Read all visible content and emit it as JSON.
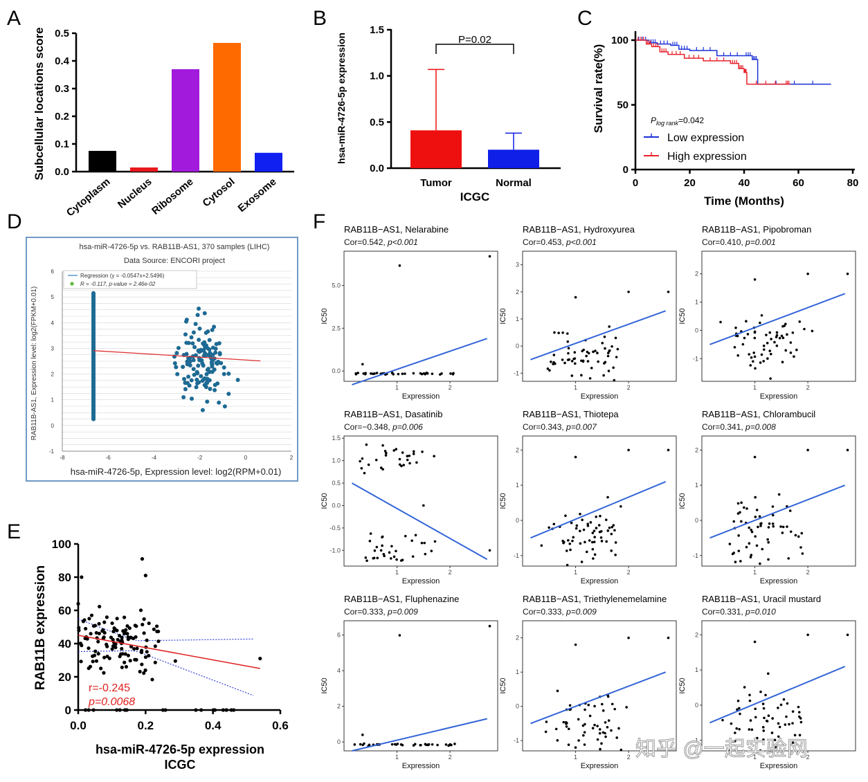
{
  "panel_labels": {
    "A": "A",
    "B": "B",
    "C": "C",
    "D": "D",
    "E": "E",
    "F": "F"
  },
  "watermark": "知乎 @一起实验网",
  "chart_data": [
    {
      "id": "A",
      "type": "bar",
      "ylabel": "Subcellular locations score",
      "categories": [
        "Cytoplasm",
        "Nucleus",
        "Ribosome",
        "Cytosol",
        "Exosome"
      ],
      "values": [
        0.075,
        0.015,
        0.37,
        0.465,
        0.068
      ],
      "colors": [
        "#000000",
        "#e8191d",
        "#a21bdc",
        "#ff6a00",
        "#1020f0"
      ],
      "ylim": [
        0,
        0.5
      ],
      "yticks": [
        "0.0",
        "0.1",
        "0.2",
        "0.3",
        "0.4",
        "0.5"
      ]
    },
    {
      "id": "B",
      "type": "bar",
      "ylabel": "hsa-miR-4726-5p expression",
      "xlabel": "ICGC",
      "categories": [
        "Tumor",
        "Normal"
      ],
      "values": [
        0.41,
        0.2
      ],
      "errors": [
        0.66,
        0.18
      ],
      "colors": [
        "#ee0f0f",
        "#0f1fe8"
      ],
      "ylim": [
        0,
        1.5
      ],
      "yticks": [
        "0.0",
        "0.5",
        "1.0",
        "1.5"
      ],
      "annotation": "P=0.02"
    },
    {
      "id": "C",
      "type": "line",
      "ylabel": "Survival rate(%)",
      "xlabel": "Time (Months)",
      "xlim": [
        0,
        80
      ],
      "ylim": [
        0,
        100
      ],
      "xticks": [
        "0",
        "20",
        "40",
        "60",
        "80"
      ],
      "yticks": [
        "0",
        "50",
        "100"
      ],
      "pvalue_prefix": "P",
      "pvalue_sub": "log rank",
      "pvalue_value": "=0.042",
      "series": [
        {
          "name": "Low expression",
          "color": "#1830d8",
          "x": [
            0,
            5,
            8,
            13,
            16,
            20,
            30,
            40,
            43,
            45,
            72
          ],
          "y": [
            100,
            98,
            97,
            96,
            93,
            92,
            88,
            88,
            85,
            66,
            66
          ]
        },
        {
          "name": "High expression",
          "color": "#e8202a",
          "x": [
            0,
            4,
            6,
            9,
            12,
            18,
            25,
            35,
            38,
            40,
            41,
            55,
            57
          ],
          "y": [
            100,
            97,
            95,
            91,
            89,
            86,
            84,
            82,
            78,
            75,
            66,
            66,
            66
          ]
        }
      ]
    },
    {
      "id": "D",
      "type": "scatter",
      "title": "hsa-miR-4726-5p vs. RAB11B-AS1, 370 samples (LIHC)",
      "subtitle": "Data Source: ENCORI project",
      "legend_regression": "Regression (y = -0.0547x+2.5496)",
      "legend_r": "R = -0.117, p-value = 2.46e-02",
      "ylabel": "RAB11B-AS1, Expression level: log2(FPKM+0.01)",
      "xlabel": "hsa-miR-4726-5p, Expression level: log2(RPM+0.01)",
      "xlim": [
        -8,
        2
      ],
      "ylim": [
        -1,
        6
      ],
      "xticks": [
        "-8",
        "-6",
        "-4",
        "-2",
        "0",
        "2"
      ],
      "yticks": [
        "-1",
        "0",
        "1",
        "2",
        "3",
        "4",
        "5",
        "6"
      ],
      "regression": {
        "slope": -0.0547,
        "intercept": 2.5496
      }
    },
    {
      "id": "E",
      "type": "scatter",
      "ylabel": "RAB11B expression",
      "xlabel_line1": "hsa-miR-4726-5p expression",
      "xlabel_line2": "ICGC",
      "xlim": [
        0,
        0.6
      ],
      "ylim": [
        0,
        100
      ],
      "xticks": [
        "0.0",
        "0.2",
        "0.4",
        "0.6"
      ],
      "yticks": [
        "0",
        "20",
        "40",
        "60",
        "80",
        "100"
      ],
      "r_text": "r=-0.245",
      "p_text": "p=0.0068",
      "regression": {
        "x": [
          0,
          0.54
        ],
        "y": [
          45,
          25
        ]
      }
    },
    {
      "id": "F",
      "type": "scatter",
      "xlabel": "Expression",
      "ylabel": "IC50",
      "panels": [
        {
          "title": "RAB11B−AS1, Nelarabine",
          "cor": "Cor=0.542, ",
          "p": "p<0.001",
          "yticks": [
            "0.0",
            "2.5",
            "5.0"
          ],
          "ylim": [
            -0.6,
            7
          ],
          "line": [
            -0.8,
            1.9
          ],
          "kind": "flat"
        },
        {
          "title": "RAB11B−AS1, Hydroxyurea",
          "cor": "Cor=0.453, ",
          "p": "p<0.001",
          "yticks": [
            "-1",
            "0",
            "1",
            "2",
            "3"
          ],
          "ylim": [
            -1.3,
            3.5
          ],
          "line": [
            -0.5,
            1.3
          ],
          "kind": "cloud"
        },
        {
          "title": "RAB11B−AS1, Pipobroman",
          "cor": "Cor=0.410, ",
          "p": "p=0.001",
          "yticks": [
            "-1",
            "0",
            "1",
            "2"
          ],
          "ylim": [
            -1.8,
            2.8
          ],
          "line": [
            -0.5,
            1.3
          ],
          "kind": "cloud"
        },
        {
          "title": "RAB11B−AS1, Dasatinib",
          "cor": "Cor=−0.348, ",
          "p": "p=0.006",
          "yticks": [
            "-1.0",
            "-0.5",
            "0.0",
            "0.5",
            "1.0",
            "1.5"
          ],
          "ylim": [
            -1.35,
            1.55
          ],
          "line": [
            0.5,
            -1.2
          ],
          "kind": "split"
        },
        {
          "title": "RAB11B−AS1, Thiotepa",
          "cor": "Cor=0.343, ",
          "p": "p=0.007",
          "yticks": [
            "-1",
            "0",
            "1",
            "2"
          ],
          "ylim": [
            -1.3,
            2.4
          ],
          "line": [
            -0.5,
            1.1
          ],
          "kind": "cloud"
        },
        {
          "title": "RAB11B−AS1, Chlorambucil",
          "cor": "Cor=0.341, ",
          "p": "p=0.008",
          "yticks": [
            "-1",
            "0",
            "1",
            "2"
          ],
          "ylim": [
            -1.3,
            2.4
          ],
          "line": [
            -0.5,
            1.0
          ],
          "kind": "cloud"
        },
        {
          "title": "RAB11B−AS1, Fluphenazine",
          "cor": "Cor=0.333, ",
          "p": "p=0.009",
          "yticks": [
            "0",
            "2",
            "4",
            "6"
          ],
          "ylim": [
            -0.5,
            6.8
          ],
          "line": [
            -0.5,
            1.3
          ],
          "kind": "flat"
        },
        {
          "title": "RAB11B−AS1, Triethylenemelamine",
          "cor": "Cor=0.333, ",
          "p": "p=0.009",
          "yticks": [
            "-1",
            "0",
            "1",
            "2"
          ],
          "ylim": [
            -1.3,
            2.5
          ],
          "line": [
            -0.5,
            1.0
          ],
          "kind": "cloud"
        },
        {
          "title": "RAB11B−AS1, Uracil mustard",
          "cor": "Cor=0.331, ",
          "p": "p=0.010",
          "yticks": [
            "-1",
            "0",
            "1",
            "2"
          ],
          "ylim": [
            -1.3,
            2.4
          ],
          "line": [
            -0.5,
            1.1
          ],
          "kind": "cloud"
        }
      ],
      "xticks": [
        "1",
        "2"
      ]
    }
  ]
}
